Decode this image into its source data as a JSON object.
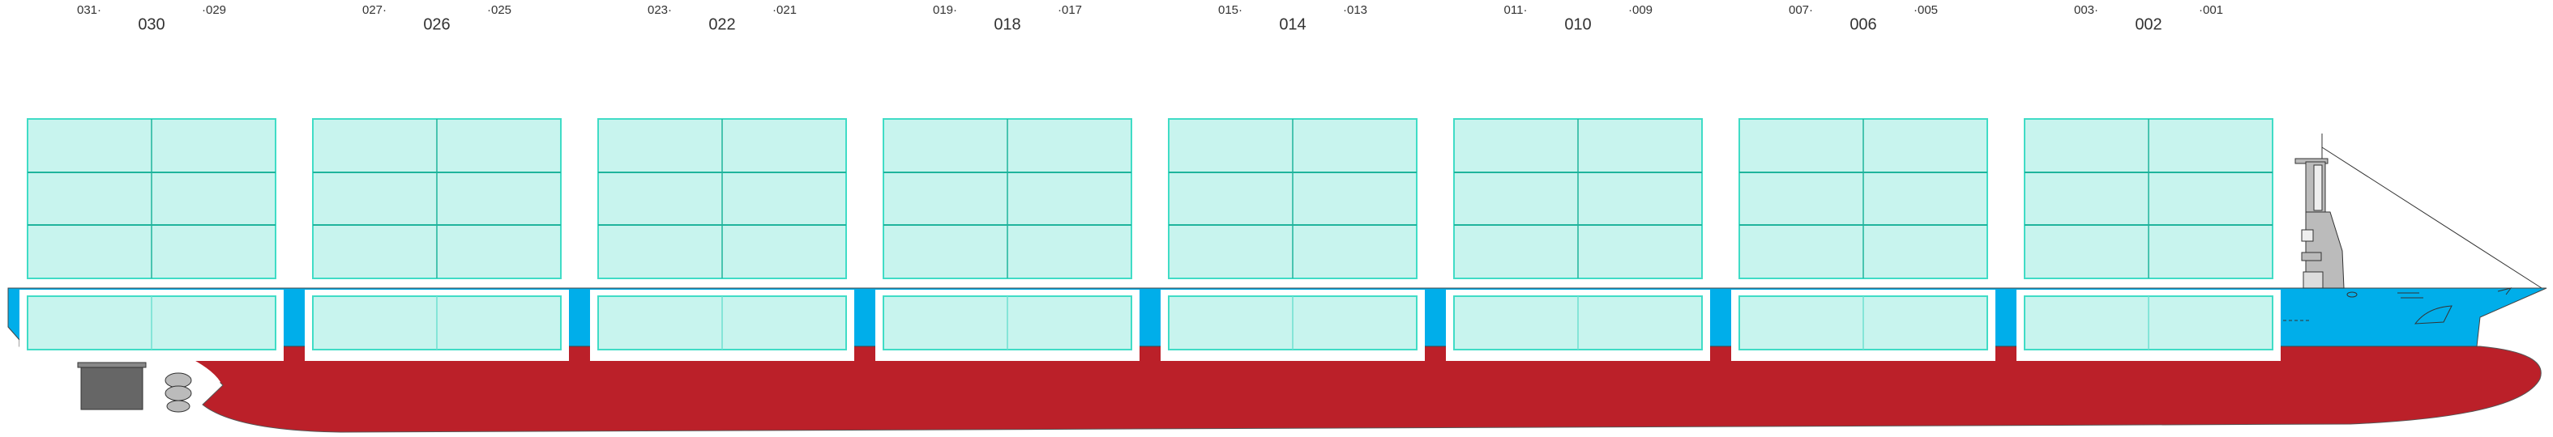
{
  "bays": [
    {
      "label": "030",
      "left": "031·",
      "right": "·029"
    },
    {
      "label": "026",
      "left": "027·",
      "right": "·025"
    },
    {
      "label": "022",
      "left": "023·",
      "right": "·021"
    },
    {
      "label": "018",
      "left": "019·",
      "right": "·017"
    },
    {
      "label": "014",
      "left": "015·",
      "right": "·013"
    },
    {
      "label": "010",
      "left": "011·",
      "right": "·009"
    },
    {
      "label": "006",
      "left": "007·",
      "right": "·005"
    },
    {
      "label": "002",
      "left": "003·",
      "right": "·001"
    }
  ]
}
